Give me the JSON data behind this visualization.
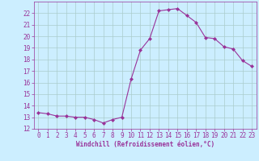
{
  "x": [
    0,
    1,
    2,
    3,
    4,
    5,
    6,
    7,
    8,
    9,
    10,
    11,
    12,
    13,
    14,
    15,
    16,
    17,
    18,
    19,
    20,
    21,
    22,
    23
  ],
  "y": [
    13.4,
    13.3,
    13.1,
    13.1,
    13.0,
    13.0,
    12.8,
    12.5,
    12.8,
    13.0,
    16.3,
    18.8,
    19.8,
    22.2,
    22.3,
    22.4,
    21.8,
    21.2,
    19.9,
    19.8,
    19.1,
    18.9,
    17.9,
    17.4
  ],
  "line_color": "#993399",
  "marker": "D",
  "marker_size": 2.0,
  "bg_color": "#cceeff",
  "grid_color": "#aacccc",
  "xlabel": "Windchill (Refroidissement éolien,°C)",
  "xlabel_color": "#993399",
  "tick_color": "#993399",
  "label_color": "#993399",
  "ylim": [
    12,
    23
  ],
  "xlim": [
    -0.5,
    23.5
  ],
  "yticks": [
    12,
    13,
    14,
    15,
    16,
    17,
    18,
    19,
    20,
    21,
    22
  ],
  "xticks": [
    0,
    1,
    2,
    3,
    4,
    5,
    6,
    7,
    8,
    9,
    10,
    11,
    12,
    13,
    14,
    15,
    16,
    17,
    18,
    19,
    20,
    21,
    22,
    23
  ],
  "tick_fontsize": 5.5,
  "xlabel_fontsize": 5.5
}
